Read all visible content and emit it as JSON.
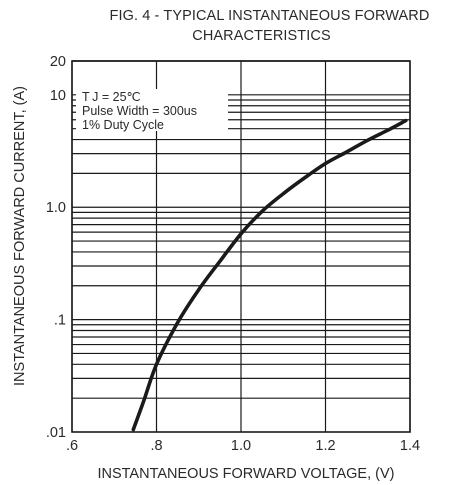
{
  "chart_data": {
    "type": "line",
    "title": "FIG. 4 - TYPICAL INSTANTANEOUS FORWARD",
    "subtitle": "CHARACTERISTICS",
    "xlabel": "INSTANTANEOUS FORWARD VOLTAGE, (V)",
    "ylabel": "INSTANTANEOUS FORWARD CURRENT, (A)",
    "xlim": [
      0.6,
      1.4
    ],
    "ylim": [
      0.01,
      20
    ],
    "y_scale": "log",
    "x_ticks": [
      ".6",
      ".8",
      "1.0",
      "1.2",
      "1.4"
    ],
    "x_tick_values": [
      0.6,
      0.8,
      1.0,
      1.2,
      1.4
    ],
    "y_ticks": [
      ".01",
      ".1",
      "1.0",
      "10",
      "20"
    ],
    "y_tick_values": [
      0.01,
      0.1,
      1.0,
      10,
      20
    ],
    "grid": true,
    "annotations": [
      "T J = 25℃",
      "Pulse Width = 300us",
      "1% Duty Cycle"
    ],
    "annotation_placement": "top-left",
    "series": [
      {
        "x": [
          0.745,
          0.77,
          0.8,
          0.85,
          0.9,
          0.95,
          1.0,
          1.05,
          1.1,
          1.15,
          1.2,
          1.25,
          1.3,
          1.35,
          1.39
        ],
        "values": [
          0.0105,
          0.019,
          0.04,
          0.094,
          0.185,
          0.33,
          0.58,
          0.92,
          1.32,
          1.82,
          2.45,
          3.1,
          3.95,
          4.9,
          5.9
        ]
      }
    ],
    "colors": {
      "line": "#1a1a1a",
      "grid": "#1a1a1a",
      "background": "#ffffff"
    }
  }
}
